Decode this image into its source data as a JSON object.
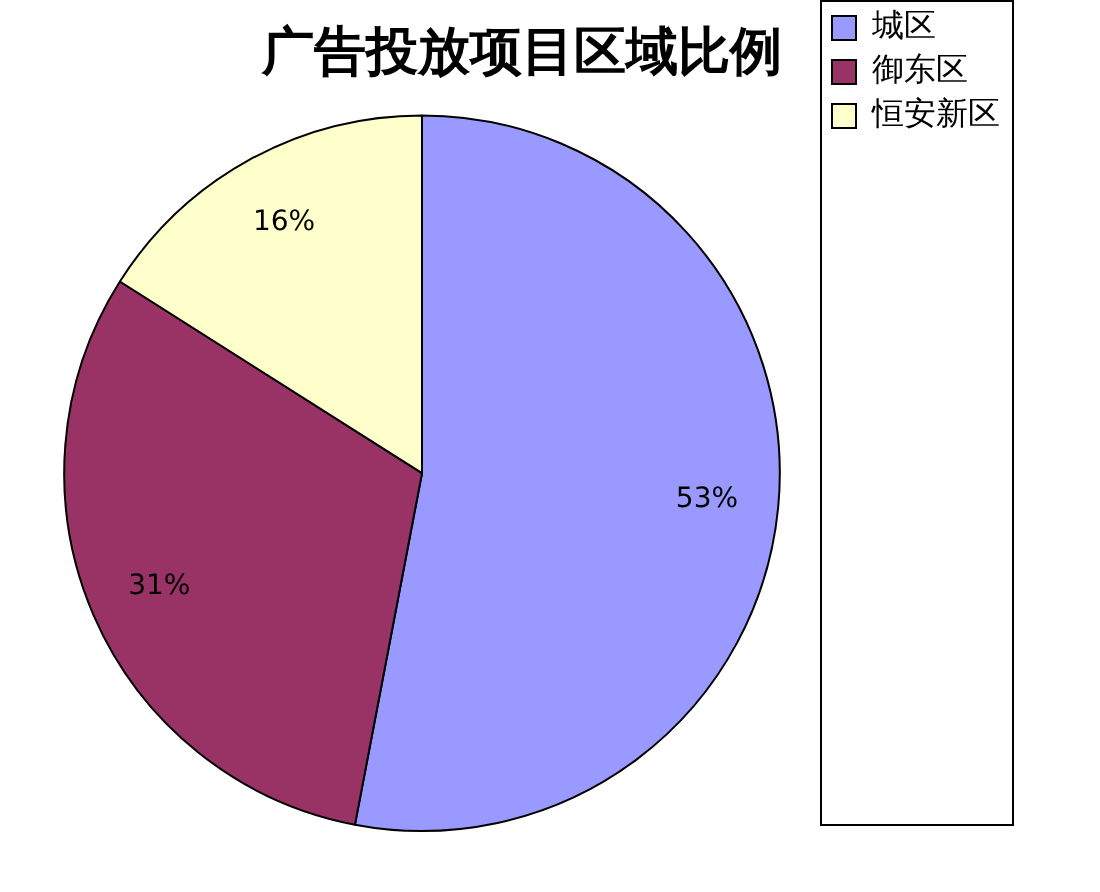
{
  "chart_data": {
    "type": "pie",
    "title": "广告投放项目区域比例",
    "categories": [
      "城区",
      "御东区",
      "恒安新区"
    ],
    "values": [
      53,
      31,
      16
    ],
    "colors": [
      "#9999ff",
      "#993366",
      "#ffffcc"
    ],
    "value_labels": [
      "53%",
      "31%",
      "16%"
    ],
    "legend": "right"
  }
}
